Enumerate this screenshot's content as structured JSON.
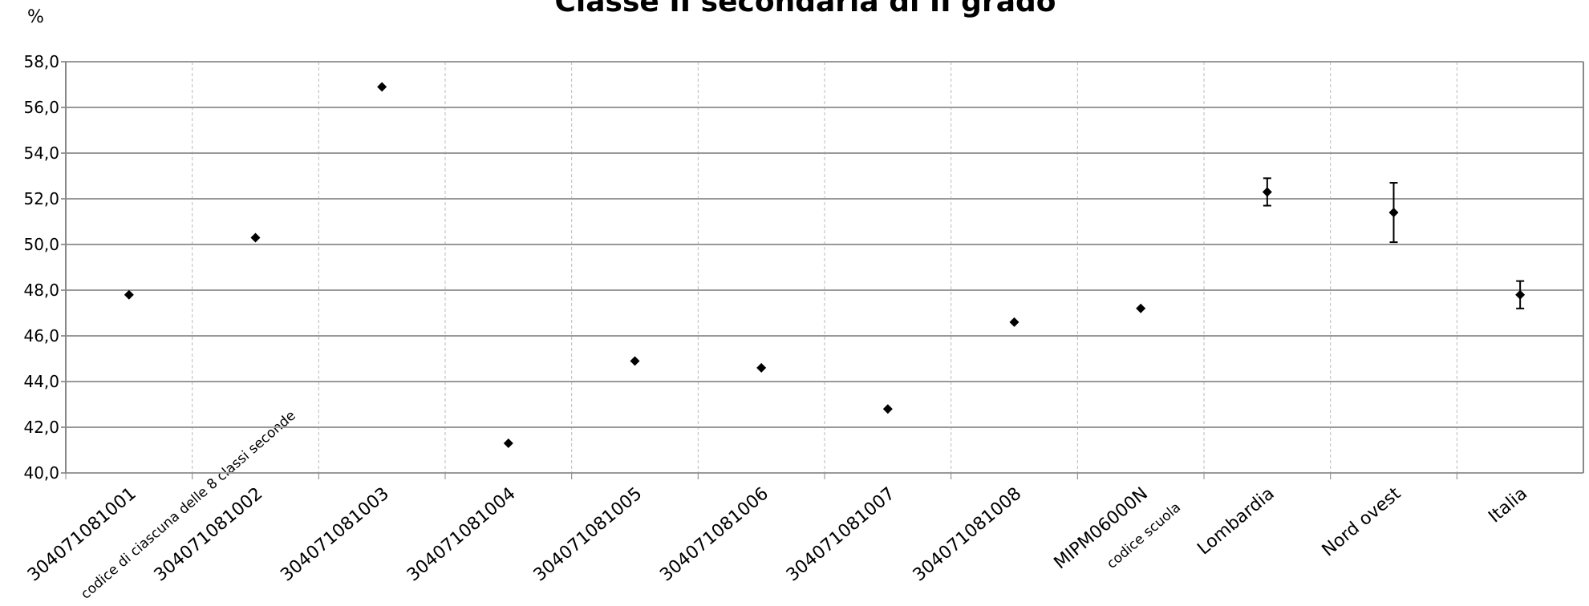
{
  "chart_data": {
    "type": "scatter",
    "title": "Classe II secondaria di II grado",
    "ylabel": "%",
    "annotations": [
      "codice di ciascuna delle 8 classi seconde",
      "codice scuola"
    ],
    "categories": [
      "304071081001",
      "304071081002",
      "304071081003",
      "304071081004",
      "304071081005",
      "304071081006",
      "304071081007",
      "304071081008",
      "MIPM06000N",
      "Lombardia",
      "Nord ovest",
      "Italia"
    ],
    "values": [
      47.8,
      50.3,
      56.9,
      41.3,
      44.9,
      44.6,
      42.8,
      46.6,
      47.2,
      52.3,
      51.4,
      47.8
    ],
    "errors": [
      null,
      null,
      null,
      null,
      null,
      null,
      null,
      null,
      null,
      0.6,
      1.3,
      0.6
    ],
    "color": "#000000",
    "ylim": [
      40,
      58
    ],
    "yticks": [
      {
        "value": 40,
        "label": "40,0"
      },
      {
        "value": 42,
        "label": "42,0"
      },
      {
        "value": 44,
        "label": "44,0"
      },
      {
        "value": 46,
        "label": "46,0"
      },
      {
        "value": 48,
        "label": "48,0"
      },
      {
        "value": 50,
        "label": "50,0"
      },
      {
        "value": 52,
        "label": "52,0"
      },
      {
        "value": 54,
        "label": "54,0"
      },
      {
        "value": 56,
        "label": "56,0"
      },
      {
        "value": 58,
        "label": "58,0"
      }
    ],
    "grid": true
  }
}
